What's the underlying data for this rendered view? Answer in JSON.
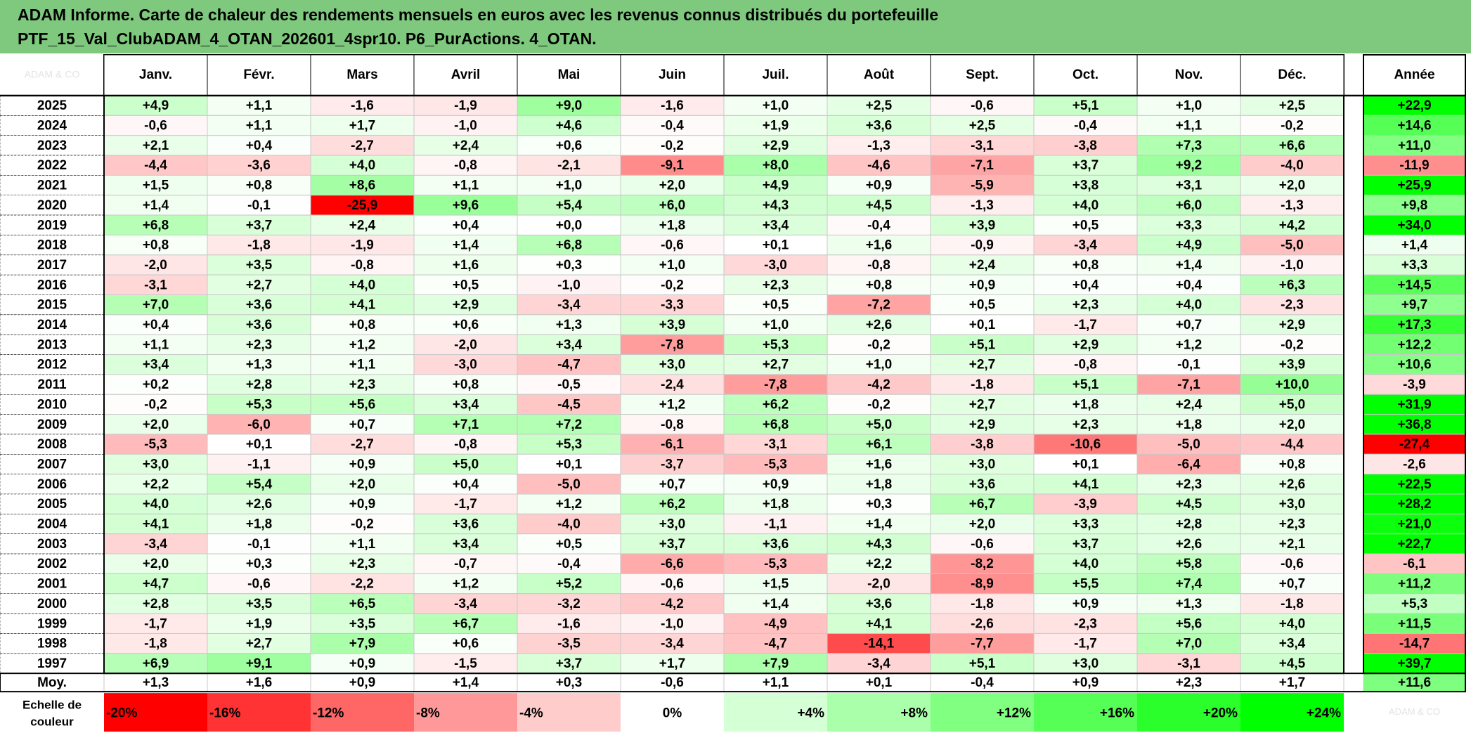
{
  "title_line1": "ADAM Informe. Carte de chaleur des rendements mensuels en euros avec les revenus connus distribués du portefeuille",
  "title_line2": "PTF_15_Val_ClubADAM_4_OTAN_202601_4spr10. P6_PurActions. 4_OTAN.",
  "corner_watermark": "ADAM & CO",
  "colors": {
    "header_bg": "#7fc97f",
    "positive_max": "#00ff00",
    "negative_max": "#ff0000",
    "neutral": "#ffffff",
    "border": "#000000"
  },
  "chart_data": {
    "type": "heatmap",
    "columns": [
      "Janv.",
      "Févr.",
      "Mars",
      "Avril",
      "Mai",
      "Juin",
      "Juil.",
      "Août",
      "Sept.",
      "Oct.",
      "Nov.",
      "Déc."
    ],
    "annual_header": "Année",
    "rows": [
      {
        "label": "2025",
        "values": [
          "+4,9",
          "+1,1",
          "-1,6",
          "-1,9",
          "+9,0",
          "-1,6",
          "+1,0",
          "+2,5",
          "-0,6",
          "+5,1",
          "+1,0",
          "+2,5"
        ],
        "annual": "+22,9"
      },
      {
        "label": "2024",
        "values": [
          "-0,6",
          "+1,1",
          "+1,7",
          "-1,0",
          "+4,6",
          "-0,4",
          "+1,9",
          "+3,6",
          "+2,5",
          "-0,4",
          "+1,1",
          "-0,2"
        ],
        "annual": "+14,6"
      },
      {
        "label": "2023",
        "values": [
          "+2,1",
          "+0,4",
          "-2,7",
          "+2,4",
          "+0,6",
          "-0,2",
          "+2,9",
          "-1,3",
          "-3,1",
          "-3,8",
          "+7,3",
          "+6,6"
        ],
        "annual": "+11,0"
      },
      {
        "label": "2022",
        "values": [
          "-4,4",
          "-3,6",
          "+4,0",
          "-0,8",
          "-2,1",
          "-9,1",
          "+8,0",
          "-4,6",
          "-7,1",
          "+3,7",
          "+9,2",
          "-4,0"
        ],
        "annual": "-11,9"
      },
      {
        "label": "2021",
        "values": [
          "+1,5",
          "+0,8",
          "+8,6",
          "+1,1",
          "+1,0",
          "+2,0",
          "+4,9",
          "+0,9",
          "-5,9",
          "+3,8",
          "+3,1",
          "+2,0"
        ],
        "annual": "+25,9"
      },
      {
        "label": "2020",
        "values": [
          "+1,4",
          "-0,1",
          "-25,9",
          "+9,6",
          "+5,4",
          "+6,0",
          "+4,3",
          "+4,5",
          "-1,3",
          "+4,0",
          "+6,0",
          "-1,3"
        ],
        "annual": "+9,8"
      },
      {
        "label": "2019",
        "values": [
          "+6,8",
          "+3,7",
          "+2,4",
          "+0,4",
          "+0,0",
          "+1,8",
          "+3,4",
          "-0,4",
          "+3,9",
          "+0,5",
          "+3,3",
          "+4,2"
        ],
        "annual": "+34,0"
      },
      {
        "label": "2018",
        "values": [
          "+0,8",
          "-1,8",
          "-1,9",
          "+1,4",
          "+6,8",
          "-0,6",
          "+0,1",
          "+1,6",
          "-0,9",
          "-3,4",
          "+4,9",
          "-5,0"
        ],
        "annual": "+1,4"
      },
      {
        "label": "2017",
        "values": [
          "-2,0",
          "+3,5",
          "-0,8",
          "+1,6",
          "+0,3",
          "+1,0",
          "-3,0",
          "-0,8",
          "+2,4",
          "+0,8",
          "+1,4",
          "-1,0"
        ],
        "annual": "+3,3"
      },
      {
        "label": "2016",
        "values": [
          "-3,1",
          "+2,7",
          "+4,0",
          "+0,5",
          "-1,0",
          "-0,2",
          "+2,3",
          "+0,8",
          "+0,9",
          "+0,4",
          "+0,4",
          "+6,3"
        ],
        "annual": "+14,5"
      },
      {
        "label": "2015",
        "values": [
          "+7,0",
          "+3,6",
          "+4,1",
          "+2,9",
          "-3,4",
          "-3,3",
          "+0,5",
          "-7,2",
          "+0,5",
          "+2,3",
          "+4,0",
          "-2,3"
        ],
        "annual": "+9,7"
      },
      {
        "label": "2014",
        "values": [
          "+0,4",
          "+3,6",
          "+0,8",
          "+0,6",
          "+1,3",
          "+3,9",
          "+1,0",
          "+2,6",
          "+0,1",
          "-1,7",
          "+0,7",
          "+2,9"
        ],
        "annual": "+17,3"
      },
      {
        "label": "2013",
        "values": [
          "+1,1",
          "+2,3",
          "+1,2",
          "-2,0",
          "+3,4",
          "-7,8",
          "+5,3",
          "-0,2",
          "+5,1",
          "+2,9",
          "+1,2",
          "-0,2"
        ],
        "annual": "+12,2"
      },
      {
        "label": "2012",
        "values": [
          "+3,4",
          "+1,3",
          "+1,1",
          "-3,0",
          "-4,7",
          "+3,0",
          "+2,7",
          "+1,0",
          "+2,7",
          "-0,8",
          "-0,1",
          "+3,9"
        ],
        "annual": "+10,6"
      },
      {
        "label": "2011",
        "values": [
          "+0,2",
          "+2,8",
          "+2,3",
          "+0,8",
          "-0,5",
          "-2,4",
          "-7,8",
          "-4,2",
          "-1,8",
          "+5,1",
          "-7,1",
          "+10,0"
        ],
        "annual": "-3,9"
      },
      {
        "label": "2010",
        "values": [
          "-0,2",
          "+5,3",
          "+5,6",
          "+3,4",
          "-4,5",
          "+1,2",
          "+6,2",
          "-0,2",
          "+2,7",
          "+1,8",
          "+2,4",
          "+5,0"
        ],
        "annual": "+31,9"
      },
      {
        "label": "2009",
        "values": [
          "+2,0",
          "-6,0",
          "+0,7",
          "+7,1",
          "+7,2",
          "-0,8",
          "+6,8",
          "+5,0",
          "+2,9",
          "+2,3",
          "+1,8",
          "+2,0"
        ],
        "annual": "+36,8"
      },
      {
        "label": "2008",
        "values": [
          "-5,3",
          "+0,1",
          "-2,7",
          "-0,8",
          "+5,3",
          "-6,1",
          "-3,1",
          "+6,1",
          "-3,8",
          "-10,6",
          "-5,0",
          "-4,4"
        ],
        "annual": "-27,4"
      },
      {
        "label": "2007",
        "values": [
          "+3,0",
          "-1,1",
          "+0,9",
          "+5,0",
          "+0,1",
          "-3,7",
          "-5,3",
          "+1,6",
          "+3,0",
          "+0,1",
          "-6,4",
          "+0,8"
        ],
        "annual": "-2,6"
      },
      {
        "label": "2006",
        "values": [
          "+2,2",
          "+5,4",
          "+2,0",
          "+0,4",
          "-5,0",
          "+0,7",
          "+0,9",
          "+1,8",
          "+3,6",
          "+4,1",
          "+2,3",
          "+2,6"
        ],
        "annual": "+22,5"
      },
      {
        "label": "2005",
        "values": [
          "+4,0",
          "+2,6",
          "+0,9",
          "-1,7",
          "+1,2",
          "+6,2",
          "+1,8",
          "+0,3",
          "+6,7",
          "-3,9",
          "+4,5",
          "+3,0"
        ],
        "annual": "+28,2"
      },
      {
        "label": "2004",
        "values": [
          "+4,1",
          "+1,8",
          "-0,2",
          "+3,6",
          "-4,0",
          "+3,0",
          "-1,1",
          "+1,4",
          "+2,0",
          "+3,3",
          "+2,8",
          "+2,3"
        ],
        "annual": "+21,0"
      },
      {
        "label": "2003",
        "values": [
          "-3,4",
          "-0,1",
          "+1,1",
          "+3,4",
          "+0,5",
          "+3,7",
          "+3,6",
          "+4,3",
          "-0,6",
          "+3,7",
          "+2,6",
          "+2,1"
        ],
        "annual": "+22,7"
      },
      {
        "label": "2002",
        "values": [
          "+2,0",
          "+0,3",
          "+2,3",
          "-0,7",
          "-0,4",
          "-6,6",
          "-5,3",
          "+2,2",
          "-8,2",
          "+4,0",
          "+5,8",
          "-0,6"
        ],
        "annual": "-6,1"
      },
      {
        "label": "2001",
        "values": [
          "+4,7",
          "-0,6",
          "-2,2",
          "+1,2",
          "+5,2",
          "-0,6",
          "+1,5",
          "-2,0",
          "-8,9",
          "+5,5",
          "+7,4",
          "+0,7"
        ],
        "annual": "+11,2"
      },
      {
        "label": "2000",
        "values": [
          "+2,8",
          "+3,5",
          "+6,5",
          "-3,4",
          "-3,2",
          "-4,2",
          "+1,4",
          "+3,6",
          "-1,8",
          "+0,9",
          "+1,3",
          "-1,8"
        ],
        "annual": "+5,3"
      },
      {
        "label": "1999",
        "values": [
          "-1,7",
          "+1,9",
          "+3,5",
          "+6,7",
          "-1,6",
          "-1,0",
          "-4,9",
          "+4,1",
          "-2,6",
          "-2,3",
          "+5,6",
          "+4,0"
        ],
        "annual": "+11,5"
      },
      {
        "label": "1998",
        "values": [
          "-1,8",
          "+2,7",
          "+7,9",
          "+0,6",
          "-3,5",
          "-3,4",
          "-4,7",
          "-14,1",
          "-7,7",
          "-1,7",
          "+7,0",
          "+3,4"
        ],
        "annual": "-14,7"
      },
      {
        "label": "1997",
        "values": [
          "+6,9",
          "+9,1",
          "+0,9",
          "-1,5",
          "+3,7",
          "+1,7",
          "+7,9",
          "-3,4",
          "+5,1",
          "+3,0",
          "-3,1",
          "+4,5"
        ],
        "annual": "+39,7"
      }
    ],
    "average_row": {
      "label": "Moy.",
      "values": [
        "+1,3",
        "+1,6",
        "+0,9",
        "+1,4",
        "+0,3",
        "-0,6",
        "+1,1",
        "+0,1",
        "-0,4",
        "+0,9",
        "+2,3",
        "+1,7"
      ],
      "annual": "+11,6"
    },
    "scale": {
      "label_line1": "Echelle de",
      "label_line2": "couleur",
      "steps": [
        "-20%",
        "-16%",
        "-12%",
        "-8%",
        "-4%",
        "0%",
        "+4%",
        "+8%",
        "+12%",
        "+16%",
        "+20%",
        "+24%"
      ],
      "trailing_watermark": "ADAM & CO"
    }
  }
}
